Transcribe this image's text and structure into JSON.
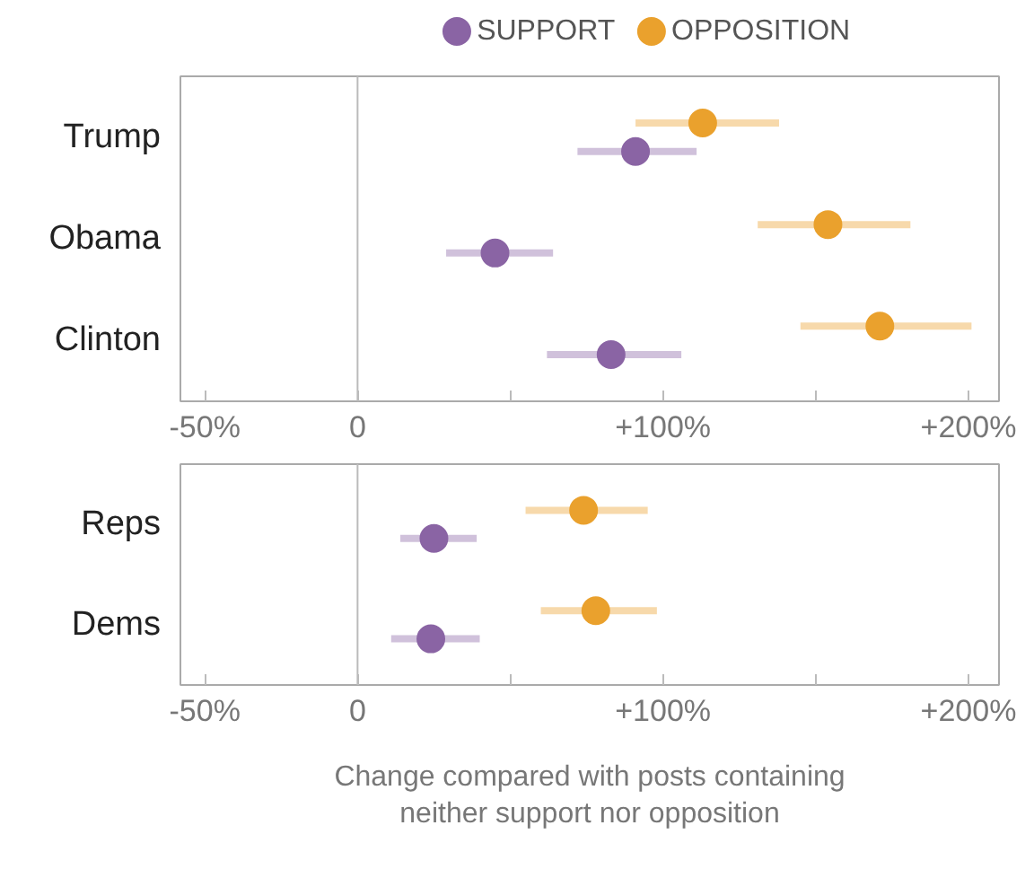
{
  "chart_data": [
    {
      "type": "scatter",
      "orientation": "horizontal",
      "categories": [
        "Trump",
        "Obama",
        "Clinton"
      ],
      "xlim": [
        -58,
        210
      ],
      "xticks": [
        {
          "value": -50,
          "label": "-50%"
        },
        0,
        {
          "value": 50,
          "label": null
        },
        {
          "value": 100,
          "label": "+100%"
        },
        {
          "value": 150,
          "label": null
        },
        {
          "value": 200,
          "label": "+200%"
        }
      ],
      "legend": "top",
      "marker": "circle",
      "ref_lines": [
        {
          "axis": "x",
          "value": 0
        }
      ],
      "series": [
        {
          "name": "SUPPORT",
          "color": "#8a64a4",
          "values": [
            91,
            45,
            83
          ],
          "errors": [
            [
              72,
              111
            ],
            [
              29,
              64
            ],
            [
              62,
              106
            ]
          ]
        },
        {
          "name": "OPPOSITION",
          "color": "#eaa12d",
          "values": [
            113,
            154,
            171
          ],
          "errors": [
            [
              91,
              138
            ],
            [
              131,
              181
            ],
            [
              145,
              201
            ]
          ]
        }
      ]
    },
    {
      "type": "scatter",
      "orientation": "horizontal",
      "categories": [
        "Reps",
        "Dems"
      ],
      "xlim": [
        -58,
        210
      ],
      "xticks": [
        {
          "value": -50,
          "label": "-50%"
        },
        0,
        {
          "value": 50,
          "label": null
        },
        {
          "value": 100,
          "label": "+100%"
        },
        {
          "value": 150,
          "label": null
        },
        {
          "value": 200,
          "label": "+200%"
        }
      ],
      "xlabel": "Change compared with posts containing\nneither support nor opposition",
      "marker": "circle",
      "ref_lines": [
        {
          "axis": "x",
          "value": 0
        }
      ],
      "series": [
        {
          "color": "#8a64a4",
          "values": [
            25,
            24
          ],
          "errors": [
            [
              14,
              39
            ],
            [
              11,
              40
            ]
          ]
        },
        {
          "color": "#eaa12d",
          "values": [
            74,
            78
          ],
          "errors": [
            [
              55,
              95
            ],
            [
              60,
              98
            ]
          ]
        }
      ]
    }
  ]
}
